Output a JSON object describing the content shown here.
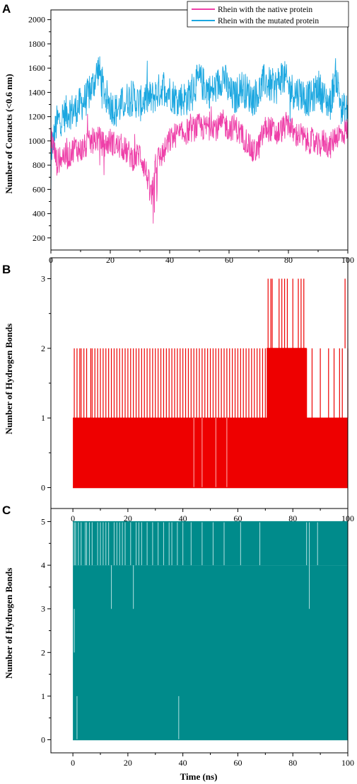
{
  "chart_data": [
    {
      "panel": "A",
      "type": "line",
      "ylabel": "Number of Contacts (<0.6 nm)",
      "xlabel": "",
      "xlim": [
        0,
        100
      ],
      "ylim": [
        100,
        2080
      ],
      "xticks": [
        0,
        20,
        40,
        60,
        80,
        100
      ],
      "yticks": [
        200,
        400,
        600,
        800,
        1000,
        1200,
        1400,
        1600,
        1800,
        2000
      ],
      "legend_position": "top-right",
      "series": [
        {
          "name": "Rhein with the native protein",
          "color": "#ee3fa8",
          "x": [
            0,
            2,
            4,
            6,
            8,
            10,
            12,
            14,
            16,
            18,
            20,
            22,
            24,
            26,
            28,
            30,
            32,
            33,
            34,
            35,
            36,
            38,
            40,
            42,
            44,
            46,
            48,
            50,
            52,
            54,
            56,
            58,
            60,
            62,
            64,
            66,
            68,
            70,
            72,
            74,
            76,
            78,
            80,
            82,
            84,
            86,
            88,
            90,
            92,
            94,
            96,
            98,
            100
          ],
          "values": [
            1050,
            820,
            880,
            870,
            950,
            920,
            960,
            1000,
            1020,
            960,
            1000,
            960,
            950,
            900,
            850,
            900,
            750,
            650,
            500,
            820,
            850,
            900,
            1000,
            1050,
            1050,
            1080,
            1100,
            1120,
            1100,
            1150,
            1100,
            1150,
            1100,
            1120,
            1050,
            1000,
            900,
            950,
            1100,
            1100,
            1050,
            1100,
            1150,
            1050,
            1050,
            1000,
            1000,
            950,
            1000,
            950,
            1050,
            1050,
            1100
          ]
        },
        {
          "name": "Rhein with the mutated protein",
          "color": "#1ba7e0",
          "x": [
            0,
            2,
            4,
            6,
            8,
            10,
            12,
            14,
            16,
            18,
            20,
            22,
            24,
            26,
            28,
            30,
            32,
            34,
            36,
            38,
            40,
            42,
            44,
            46,
            48,
            50,
            52,
            54,
            56,
            58,
            60,
            62,
            64,
            66,
            68,
            70,
            72,
            74,
            76,
            78,
            80,
            82,
            84,
            86,
            88,
            90,
            92,
            94,
            96,
            98,
            100
          ],
          "values": [
            900,
            1150,
            1200,
            1250,
            1250,
            1300,
            1350,
            1450,
            1600,
            1400,
            1300,
            1250,
            1300,
            1350,
            1350,
            1300,
            1350,
            1350,
            1400,
            1450,
            1400,
            1350,
            1350,
            1350,
            1450,
            1500,
            1450,
            1400,
            1450,
            1550,
            1400,
            1350,
            1450,
            1400,
            1350,
            1400,
            1500,
            1450,
            1450,
            1550,
            1450,
            1400,
            1400,
            1350,
            1350,
            1450,
            1350,
            1300,
            1550,
            1250,
            1250
          ]
        }
      ]
    },
    {
      "panel": "B",
      "type": "line",
      "ylabel": "Number of Hydrogen Bonds",
      "xlabel": "",
      "xlim": [
        -8,
        100
      ],
      "ylim": [
        -0.3,
        3.3
      ],
      "xticks": [
        0,
        20,
        40,
        60,
        80,
        100
      ],
      "yticks": [
        0,
        1,
        2,
        3
      ],
      "color": "#ee0000",
      "series": [
        {
          "name": "",
          "x": [
            0,
            10,
            20,
            30,
            40,
            50,
            60,
            70,
            72,
            75,
            80,
            85,
            90,
            95,
            100
          ],
          "values": [
            1,
            1,
            1,
            1,
            1,
            1,
            1,
            1,
            2,
            2,
            2,
            1,
            1,
            1,
            1
          ],
          "peaks_2": [
            0.5,
            1.5,
            2.5,
            3,
            4,
            5,
            6.5,
            7,
            8,
            9,
            10,
            11,
            12,
            13,
            14,
            15,
            16,
            17,
            18,
            19,
            20,
            21,
            22,
            23,
            24,
            25,
            26,
            27,
            28,
            29,
            30,
            31,
            32,
            33,
            34,
            35,
            36,
            37,
            38,
            39,
            40,
            41,
            42,
            43,
            44,
            45,
            46,
            47,
            48,
            49,
            50,
            51,
            52,
            53,
            54,
            55,
            56,
            57,
            58,
            59,
            60,
            61,
            62,
            63,
            64,
            65,
            66,
            67,
            68,
            69,
            70,
            71,
            72,
            73,
            74,
            75,
            76,
            77,
            78,
            79,
            80,
            81,
            82,
            83,
            84,
            85,
            87,
            90,
            93,
            95,
            97,
            98,
            100
          ],
          "peaks_3": [
            71,
            72,
            72.5,
            75,
            76,
            77,
            78,
            80,
            82,
            83,
            84,
            99
          ],
          "dips_0": [
            44,
            47,
            52,
            56
          ]
        }
      ]
    },
    {
      "panel": "C",
      "type": "line",
      "ylabel": "Number of Hydrogen Bonds",
      "xlabel": "Time (ns)",
      "xlim": [
        -8,
        100
      ],
      "ylim": [
        -0.3,
        5.3
      ],
      "xticks": [
        0,
        20,
        40,
        60,
        80,
        100
      ],
      "yticks": [
        0,
        1,
        2,
        3,
        4,
        5
      ],
      "color": "#008b8b",
      "series": [
        {
          "name": "",
          "x": [
            0,
            100
          ],
          "values": [
            5,
            5
          ],
          "dips_4": [
            0.5,
            1,
            2,
            3,
            4.5,
            5,
            6,
            7,
            9,
            10,
            11,
            12,
            13,
            15,
            16,
            17,
            18,
            19,
            21,
            23,
            24,
            25,
            27,
            29,
            31,
            33,
            35,
            36,
            38,
            40,
            43,
            47,
            51,
            55,
            61,
            68,
            85,
            86,
            89
          ],
          "dips_3": [
            14,
            22,
            86
          ],
          "dips_2": [
            0.5
          ],
          "dips_0": [
            1.5,
            38.5
          ]
        }
      ]
    }
  ],
  "legend": {
    "items": [
      {
        "label": "Rhein with the native protein",
        "color": "#ee3fa8"
      },
      {
        "label": "Rhein with the mutated protein",
        "color": "#1ba7e0"
      }
    ]
  },
  "panels": {
    "a_letter": "A",
    "b_letter": "B",
    "c_letter": "C"
  }
}
